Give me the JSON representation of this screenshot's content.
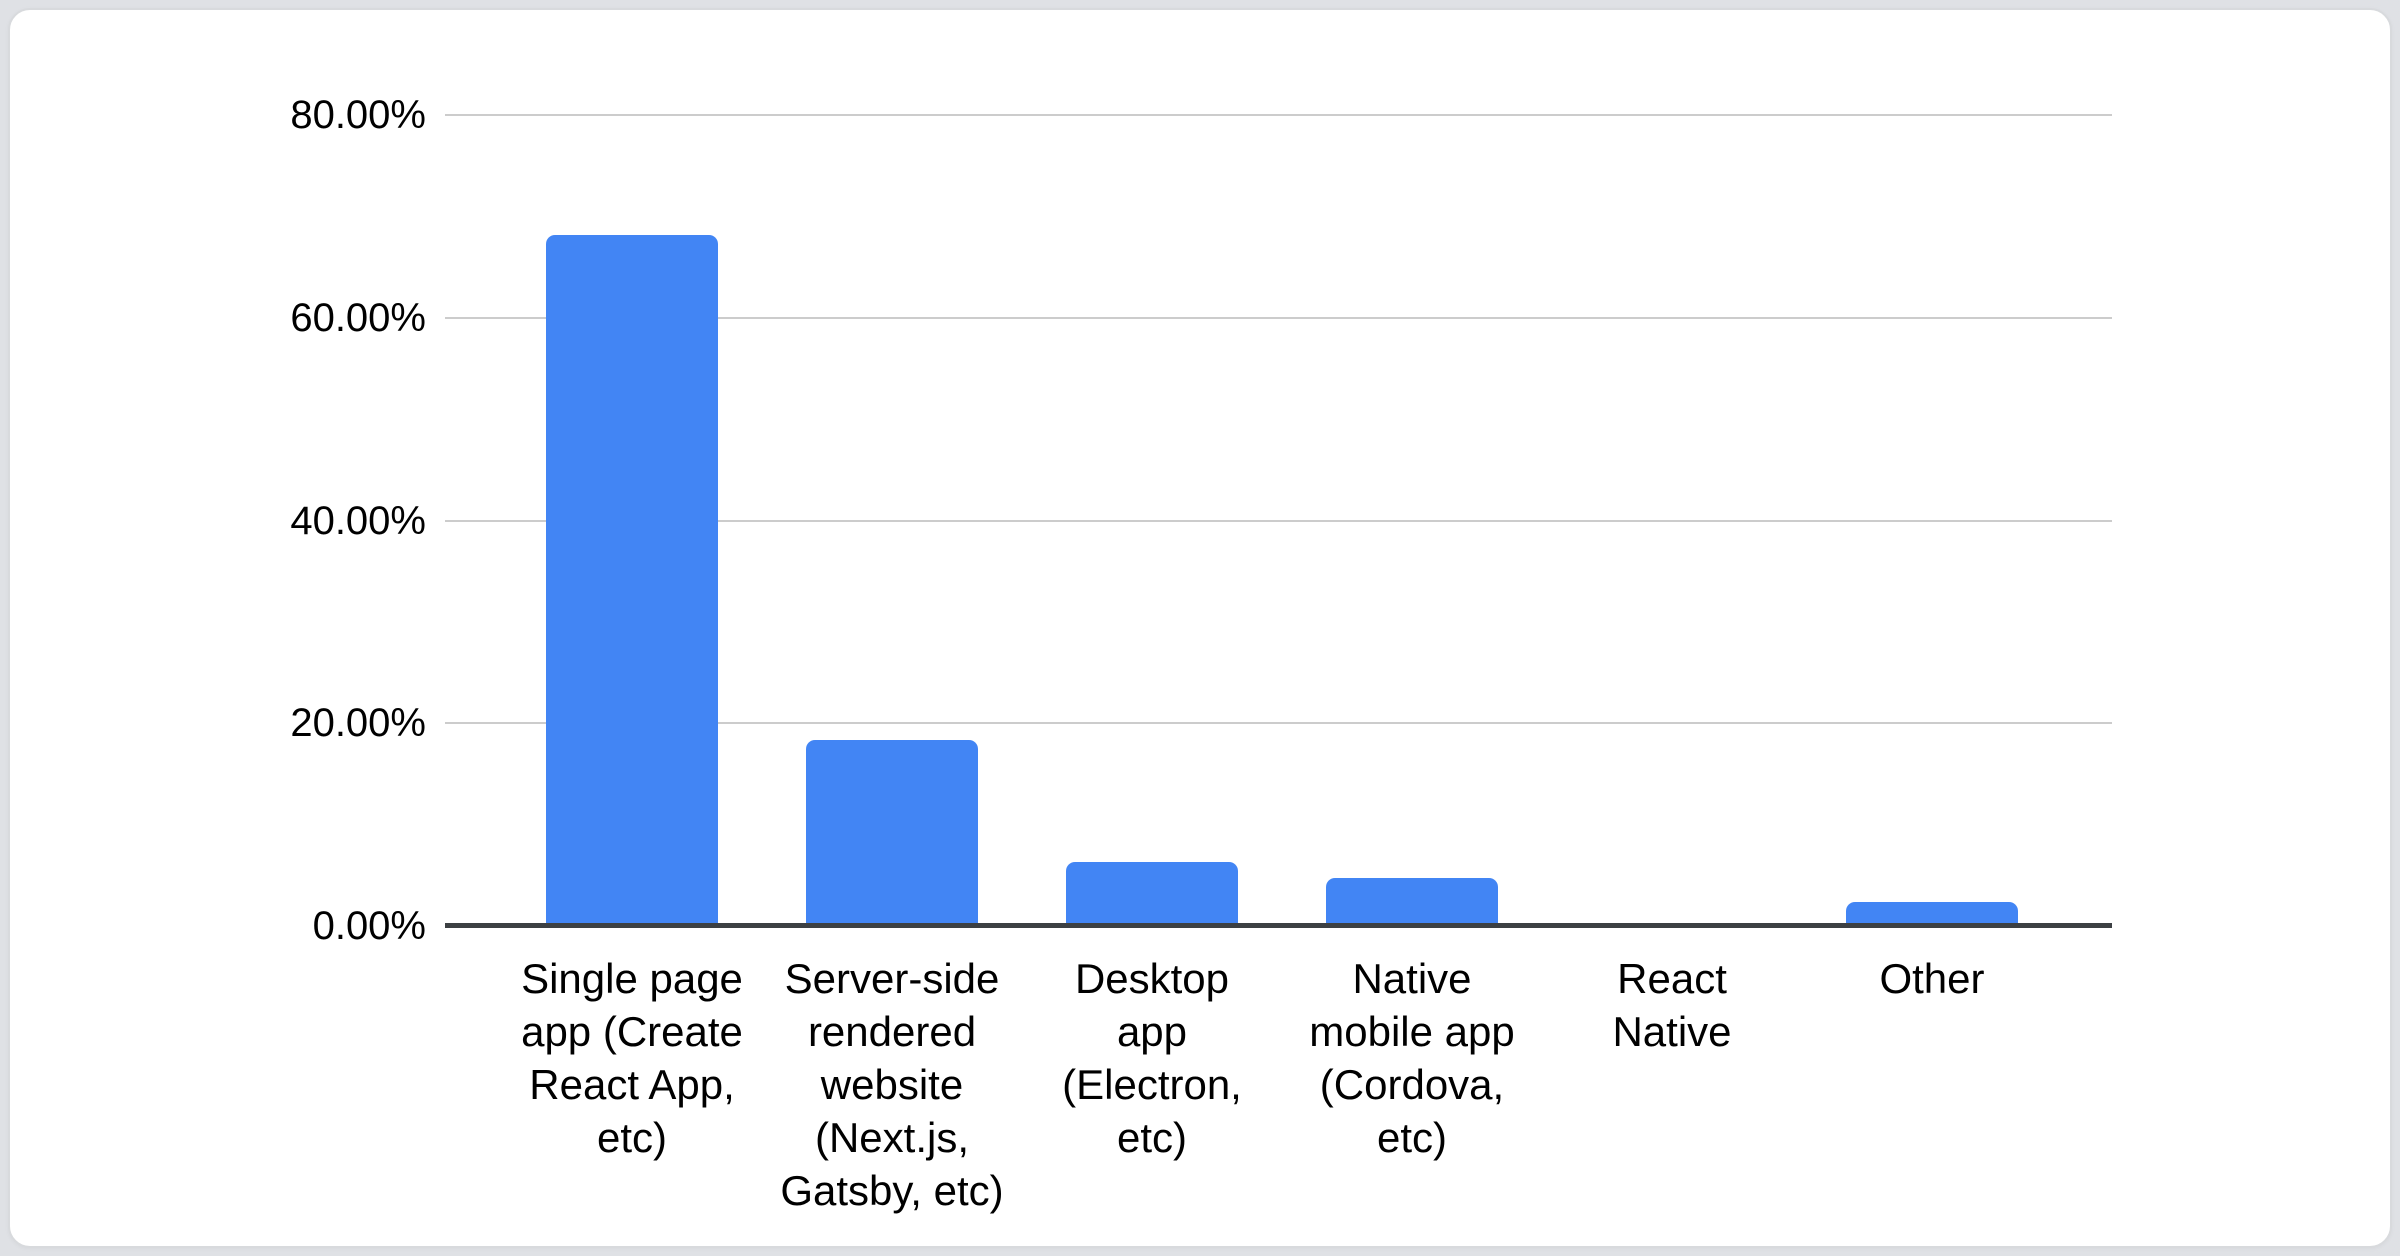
{
  "chart_data": {
    "type": "bar",
    "title": "",
    "xlabel": "",
    "ylabel": "",
    "legend": "none",
    "grid": true,
    "ylim": [
      0,
      80
    ],
    "y_ticks": [
      {
        "label": "80.00%",
        "value": 80
      },
      {
        "label": "60.00%",
        "value": 60
      },
      {
        "label": "40.00%",
        "value": 40
      },
      {
        "label": "20.00%",
        "value": 20
      },
      {
        "label": "0.00%",
        "value": 0
      }
    ],
    "categories": [
      "Single page app (Create React App, etc)",
      "Server-side rendered website (Next.js, Gatsby, etc)",
      "Desktop app (Electron, etc)",
      "Native mobile app (Cordova, etc)",
      "React Native",
      "Other"
    ],
    "category_display_lines": [
      [
        "Single page",
        "app (Create",
        "React App,",
        "etc)"
      ],
      [
        "Server-side",
        "rendered",
        "website",
        "(Next.js,",
        "Gatsby, etc)"
      ],
      [
        "Desktop",
        "app",
        "(Electron,",
        "etc)"
      ],
      [
        "Native",
        "mobile app",
        "(Cordova,",
        "etc)"
      ],
      [
        "React",
        "Native"
      ],
      [
        "Other"
      ]
    ],
    "values": [
      68.2,
      18.3,
      6.3,
      4.7,
      0,
      2.4
    ],
    "value_unit": "percent"
  },
  "colors": {
    "bar": "#4285f4",
    "gridline": "#cccccc",
    "axis_line": "#3c4043",
    "text": "#000000",
    "card_background": "#ffffff",
    "card_border": "#d8dadd",
    "page_background": "#dfe1e5"
  }
}
